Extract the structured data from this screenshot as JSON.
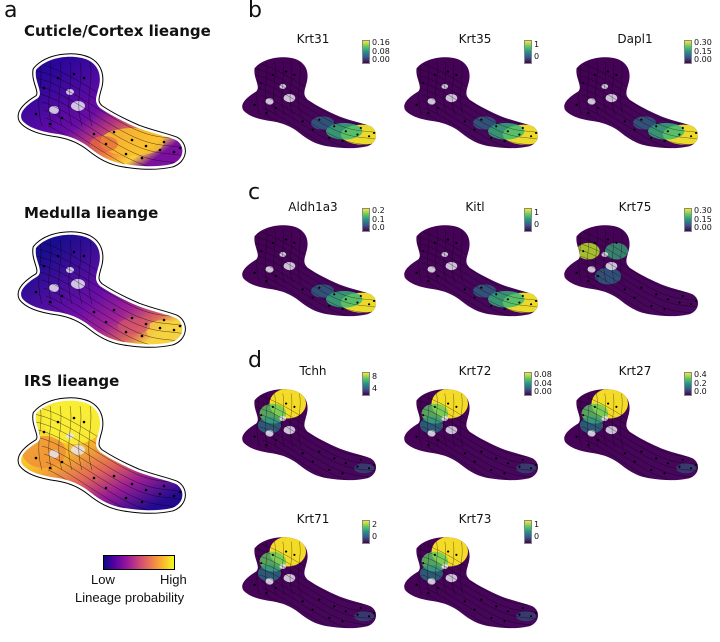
{
  "panels": {
    "a": "a",
    "b": "b",
    "c": "c",
    "d": "d"
  },
  "lineages": [
    {
      "title": "Cuticle/Cortex lieange",
      "scheme": "plasma"
    },
    {
      "title": "Medulla lieange",
      "scheme": "plasma"
    },
    {
      "title": "IRS lieange",
      "scheme": "plasma"
    }
  ],
  "legend": {
    "low": "Low",
    "high": "High",
    "label": "Lineage probability"
  },
  "genes": [
    {
      "name": "Krt31",
      "ticks": [
        "0.16",
        "0.08",
        "0.00"
      ],
      "hot": "tail"
    },
    {
      "name": "Krt35",
      "ticks": [
        "1",
        "0"
      ],
      "hot": "tail"
    },
    {
      "name": "Dapl1",
      "ticks": [
        "0.30",
        "0.15",
        "0.00"
      ],
      "hot": "tail"
    },
    {
      "name": "Aldh1a3",
      "ticks": [
        "0.2",
        "0.1",
        "0.0"
      ],
      "hot": "tail"
    },
    {
      "name": "Kitl",
      "ticks": [
        "1",
        "0"
      ],
      "hot": "tail"
    },
    {
      "name": "Krt75",
      "ticks": [
        "0.30",
        "0.15",
        "0.00"
      ],
      "hot": "upper"
    },
    {
      "name": "Tchh",
      "ticks": [
        "8",
        "4"
      ],
      "hot": "top"
    },
    {
      "name": "Krt72",
      "ticks": [
        "0.08",
        "0.04",
        "0.00"
      ],
      "hot": "top"
    },
    {
      "name": "Krt27",
      "ticks": [
        "0.4",
        "0.2",
        "0.0"
      ],
      "hot": "top"
    },
    {
      "name": "Krt71",
      "ticks": [
        "2",
        "0"
      ],
      "hot": "top"
    },
    {
      "name": "Krt73",
      "ticks": [
        "1",
        "0"
      ],
      "hot": "top"
    }
  ]
}
